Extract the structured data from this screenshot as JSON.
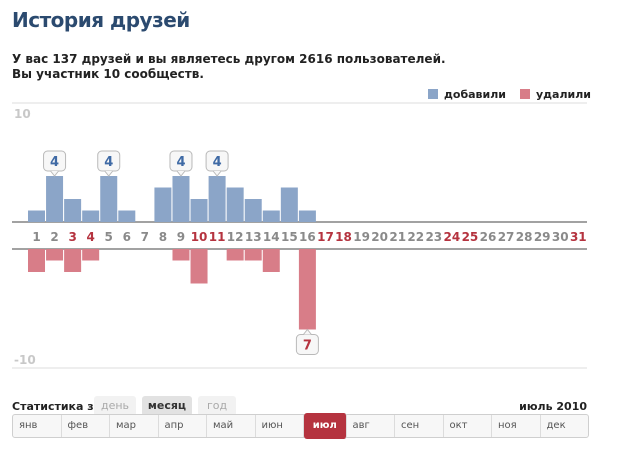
{
  "header": {
    "title": "История друзей",
    "summary_line1": "У вас 137 друзей и вы являетесь другом 2616 пользователей.",
    "summary_line2": "Вы участник 10 сообществ."
  },
  "legend": {
    "added": "добавили",
    "removed": "удалили"
  },
  "colors": {
    "added": "#8ba5c8",
    "removed": "#d87d88",
    "day_weekday": "#8a8a8a",
    "day_weekend": "#b5333f",
    "callout_added": "#3f6aa5",
    "callout_removed": "#b5333f"
  },
  "chart_data": {
    "type": "bar",
    "ylim": [
      -10,
      10
    ],
    "y_tick_labels": [
      "10",
      "-10"
    ],
    "categories": [
      "1",
      "2",
      "3",
      "4",
      "5",
      "6",
      "7",
      "8",
      "9",
      "10",
      "11",
      "12",
      "13",
      "14",
      "15",
      "16",
      "17",
      "18",
      "19",
      "20",
      "21",
      "22",
      "23",
      "24",
      "25",
      "26",
      "27",
      "28",
      "29",
      "30",
      "31"
    ],
    "weekend_days": [
      "3",
      "4",
      "10",
      "11",
      "17",
      "18",
      "24",
      "25",
      "31"
    ],
    "series": [
      {
        "name": "добавили",
        "values": [
          1,
          4,
          2,
          1,
          4,
          1,
          0,
          3,
          4,
          2,
          4,
          3,
          2,
          1,
          3,
          1,
          0,
          0,
          0,
          0,
          0,
          0,
          0,
          0,
          0,
          0,
          0,
          0,
          0,
          0,
          0
        ]
      },
      {
        "name": "удалили",
        "values": [
          -2,
          -1,
          -2,
          -1,
          0,
          0,
          0,
          0,
          -1,
          -3,
          0,
          -1,
          -1,
          -2,
          0,
          -7,
          0,
          0,
          0,
          0,
          0,
          0,
          0,
          0,
          0,
          0,
          0,
          0,
          0,
          0,
          0
        ]
      }
    ],
    "callouts": [
      {
        "day": "2",
        "value": 4,
        "label": "4",
        "series": "added"
      },
      {
        "day": "5",
        "value": 4,
        "label": "4",
        "series": "added"
      },
      {
        "day": "9",
        "value": 4,
        "label": "4",
        "series": "added"
      },
      {
        "day": "11",
        "value": 4,
        "label": "4",
        "series": "added"
      },
      {
        "day": "16",
        "value": -7,
        "label": "7",
        "series": "removed"
      }
    ]
  },
  "controls": {
    "stats_label": "Статистика за",
    "ranges": {
      "day": "день",
      "month": "месяц",
      "year": "год"
    },
    "selected_range": "месяц",
    "period": "июль 2010",
    "months": [
      "янв",
      "фев",
      "мар",
      "апр",
      "май",
      "июн",
      "июл",
      "авг",
      "сен",
      "окт",
      "ноя",
      "дек"
    ],
    "active_month": "июл"
  }
}
